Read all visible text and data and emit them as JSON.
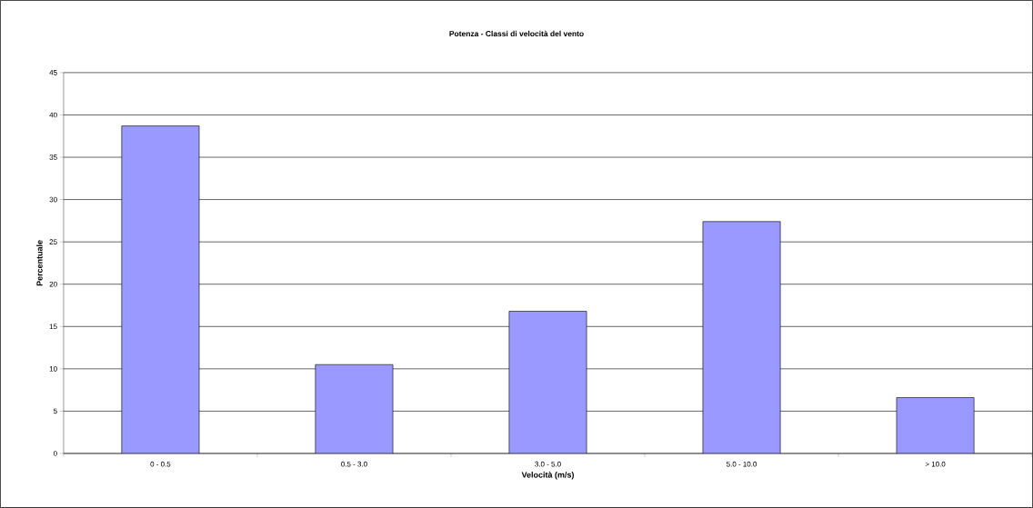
{
  "chart_data": {
    "type": "bar",
    "title": "Potenza - Classi di velocità del vento",
    "xlabel": "Velocità (m/s)",
    "ylabel": "Percentuale",
    "categories": [
      "0 - 0.5",
      "0.5 - 3.0",
      "3.0 - 5.0",
      "5.0 - 10.0",
      "> 10.0"
    ],
    "values": [
      38.7,
      10.5,
      16.8,
      27.4,
      6.6
    ],
    "color": "#9999ff",
    "ylim": [
      0,
      45
    ],
    "yticks": [
      0,
      5,
      10,
      15,
      20,
      25,
      30,
      35,
      40,
      45
    ],
    "grid": "y"
  }
}
